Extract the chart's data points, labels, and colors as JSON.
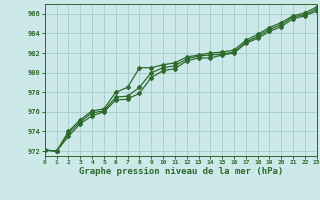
{
  "x": [
    0,
    1,
    2,
    3,
    4,
    5,
    6,
    7,
    8,
    9,
    10,
    11,
    12,
    13,
    14,
    15,
    16,
    17,
    18,
    19,
    20,
    21,
    22,
    23
  ],
  "line1": [
    972.1,
    972.0,
    974.0,
    975.2,
    976.1,
    976.3,
    978.0,
    978.5,
    980.5,
    980.5,
    980.8,
    981.0,
    981.6,
    981.8,
    982.0,
    982.1,
    982.3,
    983.3,
    983.9,
    984.6,
    985.1,
    985.8,
    986.1,
    986.7
  ],
  "line2": [
    972.1,
    972.0,
    973.8,
    975.0,
    975.9,
    976.1,
    977.5,
    977.6,
    978.5,
    980.0,
    980.5,
    980.7,
    981.4,
    981.7,
    981.8,
    981.9,
    982.1,
    983.1,
    983.7,
    984.4,
    984.9,
    985.7,
    985.9,
    986.5
  ],
  "line3": [
    972.1,
    972.0,
    973.5,
    974.8,
    975.6,
    976.0,
    977.2,
    977.3,
    977.9,
    979.5,
    980.2,
    980.4,
    981.2,
    981.5,
    981.5,
    981.8,
    982.0,
    983.0,
    983.5,
    984.2,
    984.7,
    985.5,
    985.8,
    986.3
  ],
  "line_color": "#2d6a2d",
  "bg_color": "#cce8e8",
  "grid_color": "#aacece",
  "xlabel": "Graphe pression niveau de la mer (hPa)",
  "xlim": [
    0,
    23
  ],
  "ylim": [
    971.5,
    987
  ],
  "yticks": [
    972,
    974,
    976,
    978,
    980,
    982,
    984,
    986
  ],
  "xticks": [
    0,
    1,
    2,
    3,
    4,
    5,
    6,
    7,
    8,
    9,
    10,
    11,
    12,
    13,
    14,
    15,
    16,
    17,
    18,
    19,
    20,
    21,
    22,
    23
  ]
}
